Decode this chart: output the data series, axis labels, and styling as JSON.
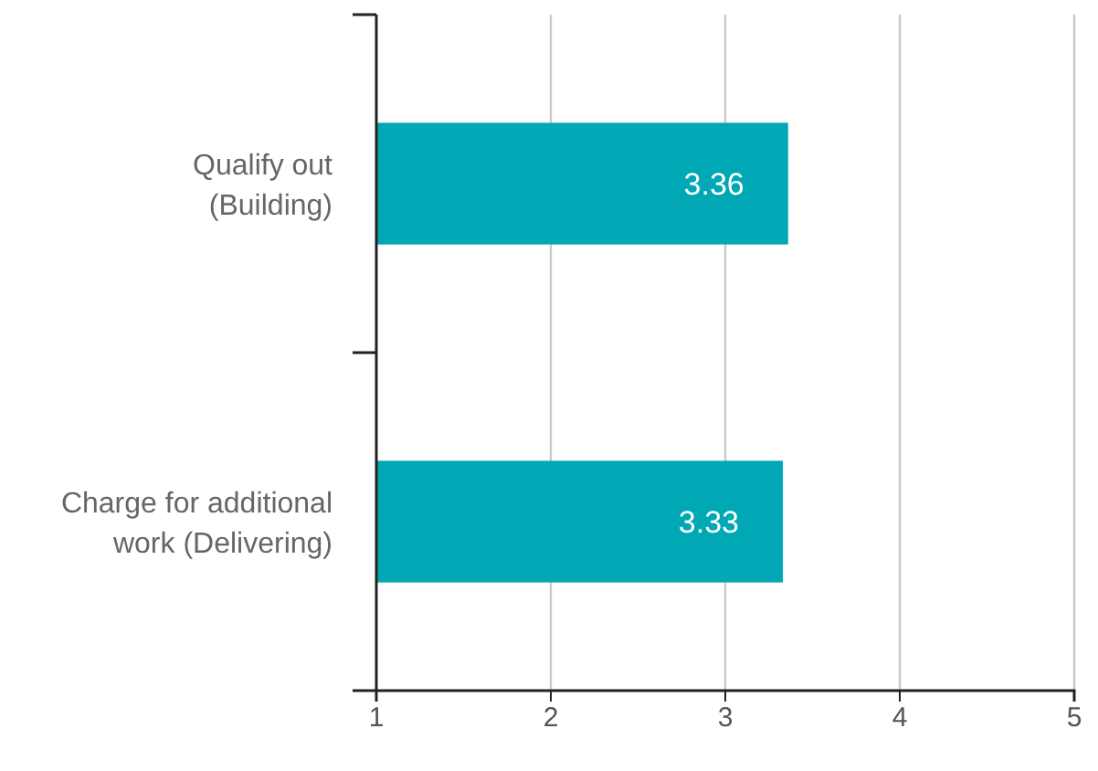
{
  "chart_data": {
    "type": "bar",
    "orientation": "horizontal",
    "categories": [
      "Qualify out\n(Building)",
      "Charge for additional\nwork (Delivering)"
    ],
    "base": [
      1,
      1
    ],
    "values": [
      2.36,
      2.33
    ],
    "value_labels": [
      "3.36",
      "3.33"
    ],
    "color": "#00a8b5",
    "xlim": [
      1,
      5
    ],
    "xticks": [
      1,
      2,
      3,
      4,
      5
    ],
    "grid": "x"
  }
}
